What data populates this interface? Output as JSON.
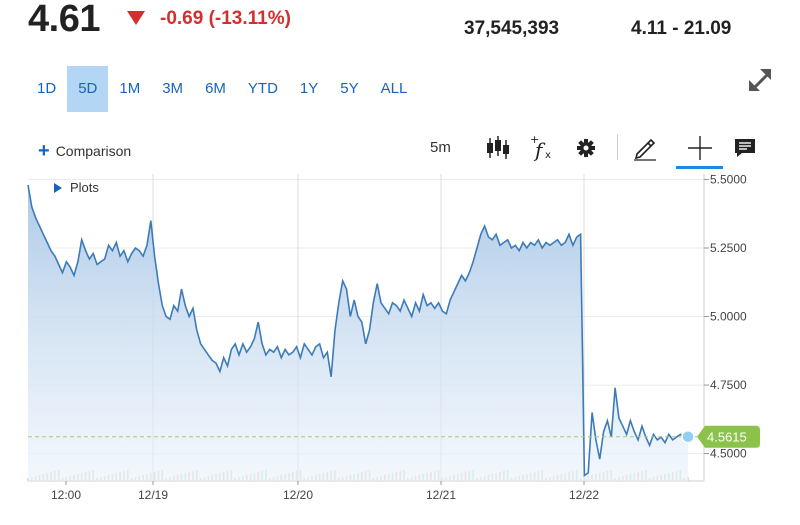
{
  "quote": {
    "price": "4.61",
    "change": "-0.69 (-13.11%)",
    "volume": "37,545,393",
    "day_range": "4.11 - 21.09"
  },
  "range_tabs": [
    {
      "label": "1D",
      "active": false
    },
    {
      "label": "5D",
      "active": true
    },
    {
      "label": "1M",
      "active": false
    },
    {
      "label": "3M",
      "active": false
    },
    {
      "label": "6M",
      "active": false
    },
    {
      "label": "YTD",
      "active": false
    },
    {
      "label": "1Y",
      "active": false
    },
    {
      "label": "5Y",
      "active": false
    },
    {
      "label": "ALL",
      "active": false
    }
  ],
  "toolbar": {
    "comparison_label": "Comparison",
    "interval_label": "5m",
    "plots_label": "Plots"
  },
  "colors": {
    "accent": "#1565c0",
    "down": "#d32f2f",
    "line": "#3d7bb8",
    "last_price_badge": "#8bc34a"
  },
  "icons": [
    "expand-icon",
    "candlestick-icon",
    "function-icon",
    "gear-icon",
    "pencil-icon",
    "crosshair-icon",
    "comment-icon"
  ],
  "chart_data": {
    "type": "area",
    "ylim": [
      4.4,
      5.52
    ],
    "y_ticks": [
      "5.5000",
      "5.2500",
      "5.0000",
      "4.7500",
      "4.5000"
    ],
    "y_tick_values": [
      5.5,
      5.25,
      5.0,
      4.75,
      4.5
    ],
    "x_tick_labels": [
      "12:00",
      "12/19",
      "12/20",
      "12/21",
      "12/22"
    ],
    "last_price_label": "4.5615",
    "last_price_value": 4.5615,
    "grid": true,
    "series": [
      {
        "values": [
          5.48,
          5.4,
          5.36,
          5.33,
          5.3,
          5.27,
          5.24,
          5.22,
          5.19,
          5.16,
          5.2,
          5.18,
          5.15,
          5.2,
          5.28,
          5.24,
          5.21,
          5.23,
          5.19,
          5.2,
          5.21,
          5.26,
          5.24,
          5.27,
          5.22,
          5.24,
          5.2,
          5.23,
          5.25,
          5.24,
          5.22,
          5.26,
          5.35,
          5.22,
          5.12,
          5.04,
          5.0,
          4.99,
          5.04,
          5.02,
          5.1,
          5.04,
          5.0,
          5.03,
          4.95,
          4.9,
          4.88,
          4.86,
          4.84,
          4.83,
          4.8,
          4.85,
          4.82,
          4.88,
          4.9,
          4.86,
          4.9,
          4.87,
          4.89,
          4.92,
          4.98,
          4.9,
          4.86,
          4.88,
          4.87,
          4.89,
          4.85,
          4.88,
          4.86,
          4.87,
          4.89,
          4.85,
          4.9,
          4.88,
          4.86,
          4.89,
          4.9,
          4.85,
          4.87,
          4.78,
          4.95,
          5.05,
          5.13,
          5.1,
          5.0,
          5.06,
          5.0,
          4.98,
          4.9,
          4.95,
          5.05,
          5.12,
          5.05,
          5.03,
          5.01,
          5.05,
          5.04,
          5.02,
          5.06,
          5.03,
          5.0,
          5.05,
          5.02,
          5.08,
          5.04,
          5.05,
          5.03,
          5.05,
          5.02,
          5.01,
          5.06,
          5.09,
          5.12,
          5.15,
          5.13,
          5.16,
          5.2,
          5.25,
          5.3,
          5.33,
          5.29,
          5.28,
          5.3,
          5.26,
          5.27,
          5.28,
          5.25,
          5.26,
          5.24,
          5.27,
          5.25,
          5.27,
          5.26,
          5.28,
          5.25,
          5.27,
          5.26,
          5.27,
          5.28,
          5.26,
          5.27,
          5.3,
          5.26,
          5.29,
          5.3,
          4.42,
          4.43,
          4.65,
          4.55,
          4.48,
          4.58,
          4.62,
          4.56,
          4.74,
          4.63,
          4.6,
          4.57,
          4.62,
          4.58,
          4.55,
          4.6,
          4.56,
          4.53,
          4.57,
          4.55,
          4.56,
          4.54,
          4.57,
          4.55,
          4.56,
          4.57,
          4.56,
          4.5615
        ]
      }
    ]
  }
}
